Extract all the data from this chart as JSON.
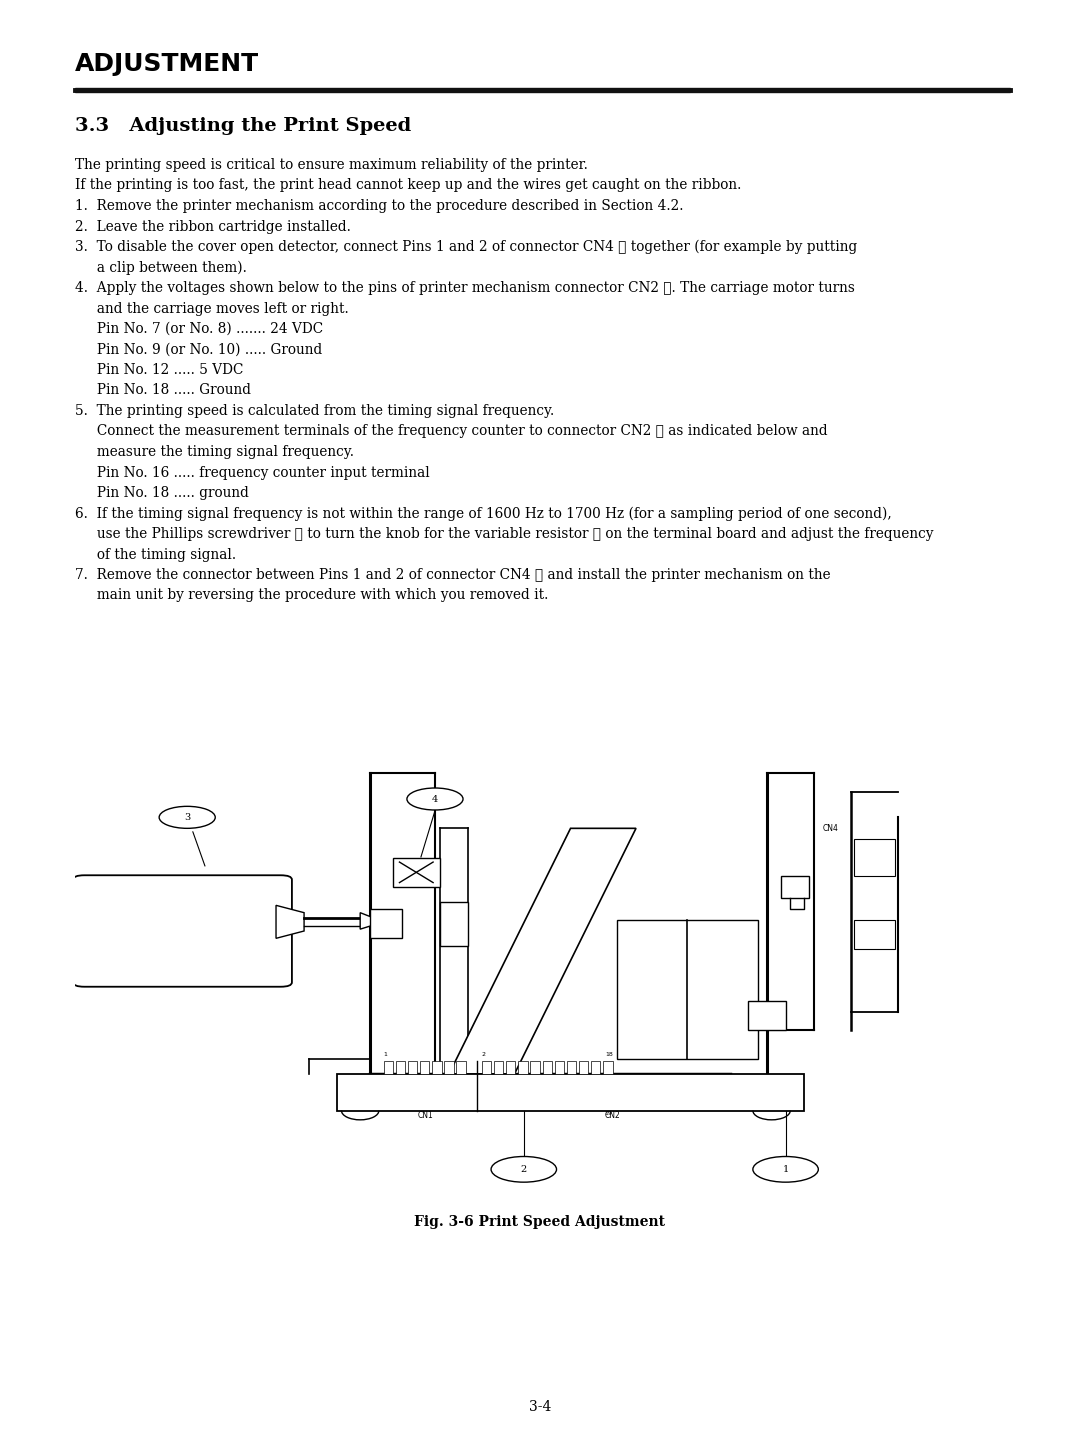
{
  "bg_color": "#ffffff",
  "text_color": "#000000",
  "header": "ADJUSTMENT",
  "section_title": "3.3   Adjusting the Print Speed",
  "page_number": "3-4",
  "fig_caption": "Fig. 3-6 Print Speed Adjustment",
  "text_block": [
    {
      "text": "The printing speed is critical to ensure maximum reliability of the printer.",
      "indent": 0,
      "extra_space_after": false
    },
    {
      "text": "If the printing is too fast, the print head cannot keep up and the wires get caught on the ribbon.",
      "indent": 0,
      "extra_space_after": false
    },
    {
      "text": "1.  Remove the printer mechanism according to the procedure described in Section 4.2.",
      "indent": 0,
      "extra_space_after": false
    },
    {
      "text": "2.  Leave the ribbon cartridge installed.",
      "indent": 0,
      "extra_space_after": false
    },
    {
      "text": "3.  To disable the cover open detector, connect Pins 1 and 2 of connector CN4 ① together (for example by putting",
      "indent": 0,
      "extra_space_after": false
    },
    {
      "text": "     a clip between them).",
      "indent": 0,
      "extra_space_after": false
    },
    {
      "text": "4.  Apply the voltages shown below to the pins of printer mechanism connector CN2 ②. The carriage motor turns",
      "indent": 0,
      "extra_space_after": false
    },
    {
      "text": "     and the carriage moves left or right.",
      "indent": 0,
      "extra_space_after": false
    },
    {
      "text": "     Pin No. 7 (or No. 8) ....... 24 VDC",
      "indent": 0,
      "extra_space_after": false
    },
    {
      "text": "     Pin No. 9 (or No. 10) ..... Ground",
      "indent": 0,
      "extra_space_after": false
    },
    {
      "text": "     Pin No. 12 ..... 5 VDC",
      "indent": 0,
      "extra_space_after": false
    },
    {
      "text": "     Pin No. 18 ..... Ground",
      "indent": 0,
      "extra_space_after": false
    },
    {
      "text": "5.  The printing speed is calculated from the timing signal frequency.",
      "indent": 0,
      "extra_space_after": false
    },
    {
      "text": "     Connect the measurement terminals of the frequency counter to connector CN2 ② as indicated below and",
      "indent": 0,
      "extra_space_after": false
    },
    {
      "text": "     measure the timing signal frequency.",
      "indent": 0,
      "extra_space_after": false
    },
    {
      "text": "     Pin No. 16 ..... frequency counter input terminal",
      "indent": 0,
      "extra_space_after": false
    },
    {
      "text": "     Pin No. 18 ..... ground",
      "indent": 0,
      "extra_space_after": false
    },
    {
      "text": "6.  If the timing signal frequency is not within the range of 1600 Hz to 1700 Hz (for a sampling period of one second),",
      "indent": 0,
      "extra_space_after": false
    },
    {
      "text": "     use the Phillips screwdriver ③ to turn the knob for the variable resistor ④ on the terminal board and adjust the frequency",
      "indent": 0,
      "extra_space_after": false
    },
    {
      "text": "     of the timing signal.",
      "indent": 0,
      "extra_space_after": false
    },
    {
      "text": "7.  Remove the connector between Pins 1 and 2 of connector CN4 ① and install the printer mechanism on the",
      "indent": 0,
      "extra_space_after": false
    },
    {
      "text": "     main unit by reversing the procedure with which you removed it.",
      "indent": 0,
      "extra_space_after": false
    }
  ]
}
